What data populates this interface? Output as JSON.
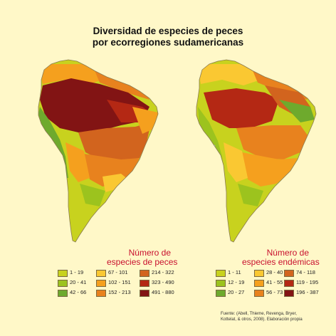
{
  "title": {
    "line1": "Diversidad de especies de peces",
    "line2": "por ecorregiones sudamericanas"
  },
  "colors": {
    "background": "#FFF8C8",
    "legend_title": "#C8102E",
    "ocean_outline": "#8a7a50",
    "lake": "#A8D8E8"
  },
  "legend_left": {
    "title_line1": "Número de",
    "title_line2": "especies de peces",
    "items": [
      {
        "label": "1 - 19",
        "color": "#C8D21E"
      },
      {
        "label": "20 - 41",
        "color": "#9CC31E"
      },
      {
        "label": "42 - 66",
        "color": "#6EAA2D"
      },
      {
        "label": "67 - 101",
        "color": "#FAC832"
      },
      {
        "label": "102 - 151",
        "color": "#F5A01E"
      },
      {
        "label": "152 - 213",
        "color": "#E8821E"
      },
      {
        "label": "214 - 322",
        "color": "#D2641E"
      },
      {
        "label": "323 - 490",
        "color": "#B42814"
      },
      {
        "label": "491 - 880",
        "color": "#821414"
      }
    ]
  },
  "legend_right": {
    "title_line1": "Número de",
    "title_line2": "especies endémicas",
    "items": [
      {
        "label": "1 - 11",
        "color": "#C8D21E"
      },
      {
        "label": "12 - 19",
        "color": "#9CC31E"
      },
      {
        "label": "20 - 27",
        "color": "#6EAA2D"
      },
      {
        "label": "28 - 40",
        "color": "#FAC832"
      },
      {
        "label": "41 - 55",
        "color": "#F5A01E"
      },
      {
        "label": "56 - 73",
        "color": "#E8821E"
      },
      {
        "label": "74 - 118",
        "color": "#D2641E"
      },
      {
        "label": "119 - 195",
        "color": "#B42814"
      },
      {
        "label": "196 - 387",
        "color": "#821414"
      }
    ]
  },
  "source": {
    "line1": "Fuente: (Abell, Thieme, Revenga, Bryer,",
    "line2": "Kottelat, & otros, 2008). Elaboración propia"
  }
}
